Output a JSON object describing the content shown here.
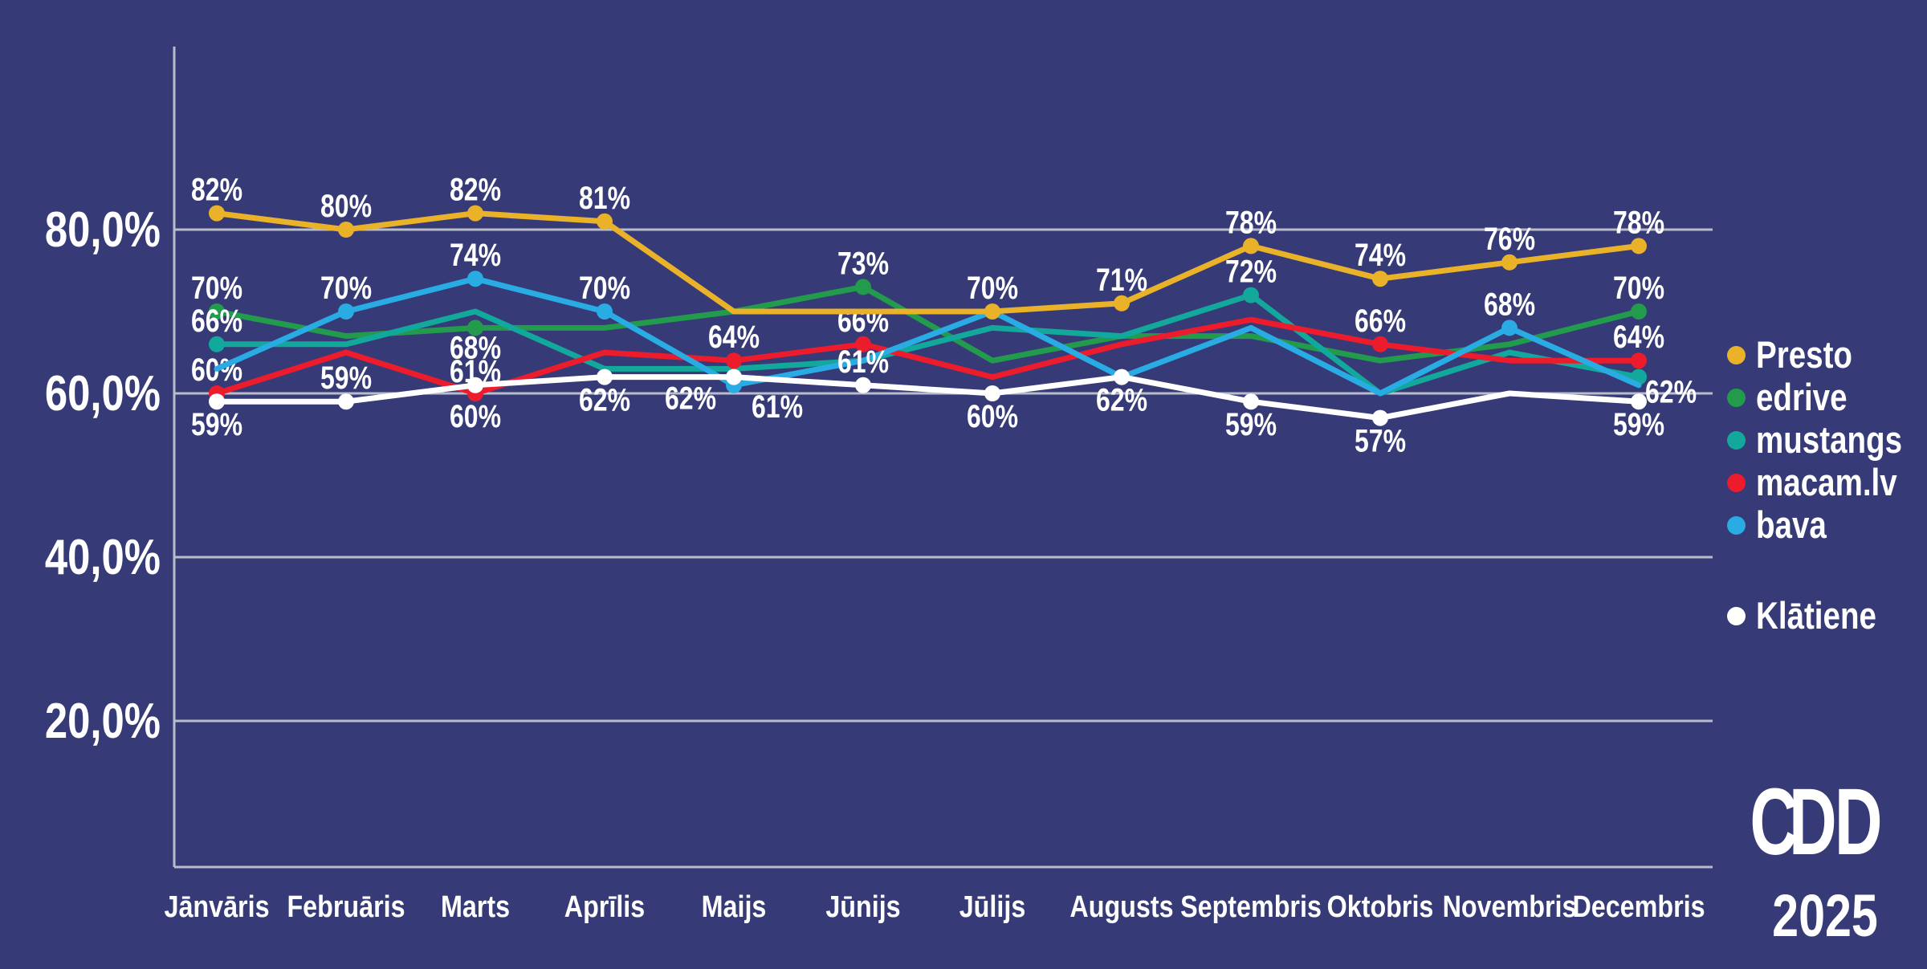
{
  "colors": {
    "background": "#363A76",
    "grid": "#B9BCCB",
    "axis": "#B9BCCB",
    "label_text": "#FFFFFF"
  },
  "chart_data": {
    "type": "line",
    "title": "",
    "categories": [
      "Jānvāris",
      "Februāris",
      "Marts",
      "Aprīlis",
      "Maijs",
      "Jūnijs",
      "Jūlijs",
      "Augusts",
      "Septembris",
      "Oktobris",
      "Novembris",
      "Decembris"
    ],
    "y_axis": {
      "tick_labels": [
        "80,0%",
        "60,0%",
        "40,0%",
        "20,0%"
      ],
      "tick_values": [
        80,
        60,
        40,
        20
      ],
      "grid": true,
      "range_shown": [
        0,
        100
      ]
    },
    "legend_position": "right",
    "series": [
      {
        "name": "Presto",
        "color": "#E9B229",
        "values": [
          82,
          80,
          82,
          81,
          70,
          70,
          70,
          71,
          78,
          74,
          76,
          78
        ],
        "labels": [
          {
            "i": 0,
            "text": "82%",
            "pos": "above"
          },
          {
            "i": 1,
            "text": "80%",
            "pos": "above"
          },
          {
            "i": 2,
            "text": "82%",
            "pos": "above"
          },
          {
            "i": 3,
            "text": "81%",
            "pos": "above"
          },
          {
            "i": 6,
            "text": "70%",
            "pos": "above"
          },
          {
            "i": 7,
            "text": "71%",
            "pos": "above"
          },
          {
            "i": 8,
            "text": "78%",
            "pos": "above"
          },
          {
            "i": 9,
            "text": "74%",
            "pos": "above"
          },
          {
            "i": 10,
            "text": "76%",
            "pos": "above"
          },
          {
            "i": 11,
            "text": "78%",
            "pos": "above"
          }
        ]
      },
      {
        "name": "edrive",
        "color": "#239B4D",
        "values": [
          70,
          67,
          68,
          68,
          70,
          73,
          64,
          67,
          67,
          64,
          66,
          70
        ],
        "labels": [
          {
            "i": 0,
            "text": "70%",
            "pos": "above"
          },
          {
            "i": 2,
            "text": "68%",
            "pos": "below",
            "dy": -4
          },
          {
            "i": 5,
            "text": "73%",
            "pos": "above"
          },
          {
            "i": 11,
            "text": "70%",
            "pos": "above"
          }
        ]
      },
      {
        "name": "mustangs",
        "color": "#12A89B",
        "values": [
          66,
          66,
          70,
          63,
          63,
          64,
          68,
          67,
          72,
          60,
          65,
          62
        ],
        "labels": [
          {
            "i": 0,
            "text": "66%",
            "pos": "above"
          },
          {
            "i": 8,
            "text": "72%",
            "pos": "above"
          },
          {
            "i": 11,
            "text": "62%",
            "pos": "below",
            "dx": 40,
            "dy": -10
          }
        ]
      },
      {
        "name": "macam.lv",
        "color": "#EC1C2D",
        "values": [
          60,
          65,
          60,
          65,
          64,
          66,
          62,
          66,
          69,
          66,
          64,
          64
        ],
        "labels": [
          {
            "i": 0,
            "text": "60%",
            "pos": "above"
          },
          {
            "i": 2,
            "text": "60%",
            "pos": "below"
          },
          {
            "i": 4,
            "text": "64%",
            "pos": "above"
          },
          {
            "i": 5,
            "text": "66%",
            "pos": "above"
          },
          {
            "i": 9,
            "text": "66%",
            "pos": "above"
          },
          {
            "i": 11,
            "text": "64%",
            "pos": "above"
          }
        ]
      },
      {
        "name": "bava",
        "color": "#29ABE3",
        "values": [
          63,
          70,
          74,
          70,
          61,
          64,
          70,
          62,
          68,
          60,
          68,
          61
        ],
        "labels": [
          {
            "i": 1,
            "text": "70%",
            "pos": "above"
          },
          {
            "i": 2,
            "text": "74%",
            "pos": "above"
          },
          {
            "i": 3,
            "text": "70%",
            "pos": "above"
          },
          {
            "i": 4,
            "text": "61%",
            "pos": "below",
            "dx": 54,
            "dy": -2
          },
          {
            "i": 10,
            "text": "68%",
            "pos": "above"
          }
        ]
      },
      {
        "name": "Klātiene",
        "color": "#FFFFFF",
        "separate_legend": true,
        "values": [
          59,
          59,
          61,
          62,
          62,
          61,
          60,
          62,
          59,
          57,
          60,
          59
        ],
        "labels": [
          {
            "i": 0,
            "text": "59%",
            "pos": "below"
          },
          {
            "i": 1,
            "text": "59%",
            "pos": "above"
          },
          {
            "i": 2,
            "text": "61%",
            "pos": "above",
            "dy": 12
          },
          {
            "i": 3,
            "text": "62%",
            "pos": "below"
          },
          {
            "i": 4,
            "text": "62%",
            "pos": "below",
            "dx": -54,
            "dy": -2
          },
          {
            "i": 5,
            "text": "61%",
            "pos": "above"
          },
          {
            "i": 6,
            "text": "60%",
            "pos": "below"
          },
          {
            "i": 7,
            "text": "62%",
            "pos": "below"
          },
          {
            "i": 8,
            "text": "59%",
            "pos": "below"
          },
          {
            "i": 9,
            "text": "57%",
            "pos": "below"
          },
          {
            "i": 11,
            "text": "59%",
            "pos": "below"
          }
        ]
      }
    ]
  },
  "branding": {
    "logo_c": "C",
    "logo_dd": "DD",
    "year": "2025"
  }
}
